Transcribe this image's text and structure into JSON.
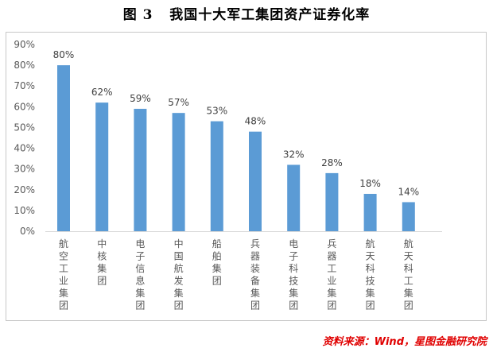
{
  "title": "图 3   我国十大军工集团资产证券化率",
  "source": "资料来源：Wind，星图金融研究院",
  "chart_data": {
    "type": "bar",
    "categories": [
      "航空工业集团",
      "中核集团",
      "电子信息集团",
      "中国航发集团",
      "船舶集团",
      "兵器装备集团",
      "电子科技集团",
      "兵器工业集团",
      "航天科技集团",
      "航天科工集团"
    ],
    "values": [
      80,
      62,
      59,
      57,
      53,
      48,
      32,
      28,
      18,
      14
    ],
    "data_labels": [
      "80%",
      "62%",
      "59%",
      "57%",
      "53%",
      "48%",
      "32%",
      "28%",
      "18%",
      "14%"
    ],
    "yticks": [
      "0%",
      "10%",
      "20%",
      "30%",
      "40%",
      "50%",
      "60%",
      "70%",
      "80%",
      "90%"
    ],
    "ylim": [
      0,
      90
    ],
    "grid": false,
    "legend": "none",
    "bar_color": "#5b9bd5"
  }
}
